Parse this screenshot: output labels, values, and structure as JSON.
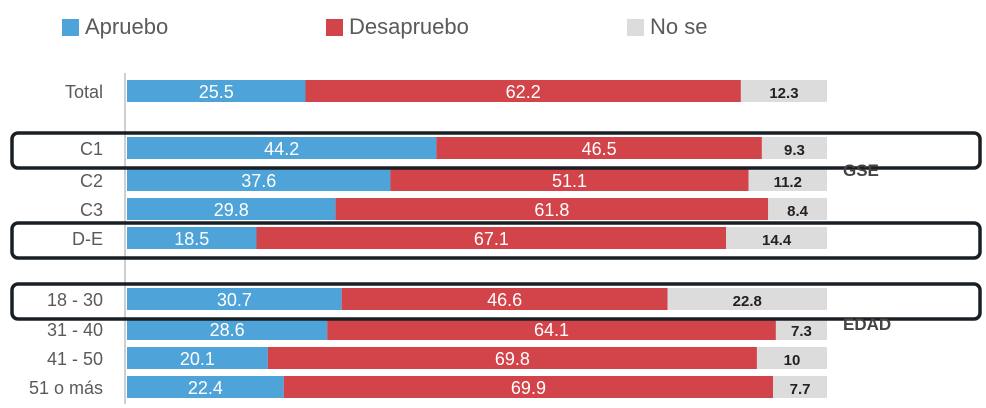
{
  "colors": {
    "apruebo": "#4ea3d8",
    "desapruebo": "#d2434a",
    "nose": "#dcdcdc",
    "axis": "#bfbfbf",
    "frame": "#1a1f24",
    "label": "#5a5a5a",
    "inside_text": "#ffffff",
    "nose_text": "#222222"
  },
  "chart_data": {
    "type": "bar",
    "orientation": "horizontal",
    "stacked": true,
    "legend_position": "top",
    "series": [
      {
        "name": "Apruebo",
        "values": [
          25.5,
          44.2,
          37.6,
          29.8,
          18.5,
          30.7,
          28.6,
          20.1,
          22.4
        ]
      },
      {
        "name": "Desapruebo",
        "values": [
          62.2,
          46.5,
          51.1,
          61.8,
          67.1,
          46.6,
          64.1,
          69.8,
          69.9
        ]
      },
      {
        "name": "No se",
        "values": [
          12.3,
          9.3,
          11.2,
          8.4,
          14.4,
          22.8,
          7.3,
          10,
          7.7
        ]
      }
    ],
    "categories": [
      "Total",
      "C1",
      "C2",
      "C3",
      "D-E",
      "18 - 30",
      "31 - 40",
      "41 - 50",
      "51 o más"
    ],
    "value_labels": [
      [
        "25.5",
        "62.2",
        "12.3"
      ],
      [
        "44.2",
        "46.5",
        "9.3"
      ],
      [
        "37.6",
        "51.1",
        "11.2"
      ],
      [
        "29.8",
        "61.8",
        "8.4"
      ],
      [
        "18.5",
        "67.1",
        "14.4"
      ],
      [
        "30.7",
        "46.6",
        "22.8"
      ],
      [
        "28.6",
        "64.1",
        "7.3"
      ],
      [
        "20.1",
        "69.8",
        "10"
      ],
      [
        "22.4",
        "69.9",
        "7.7"
      ]
    ],
    "group_labels": [
      "GSE",
      "EDAD"
    ],
    "highlighted_categories": [
      "C1",
      "D-E",
      "18 - 30"
    ]
  }
}
